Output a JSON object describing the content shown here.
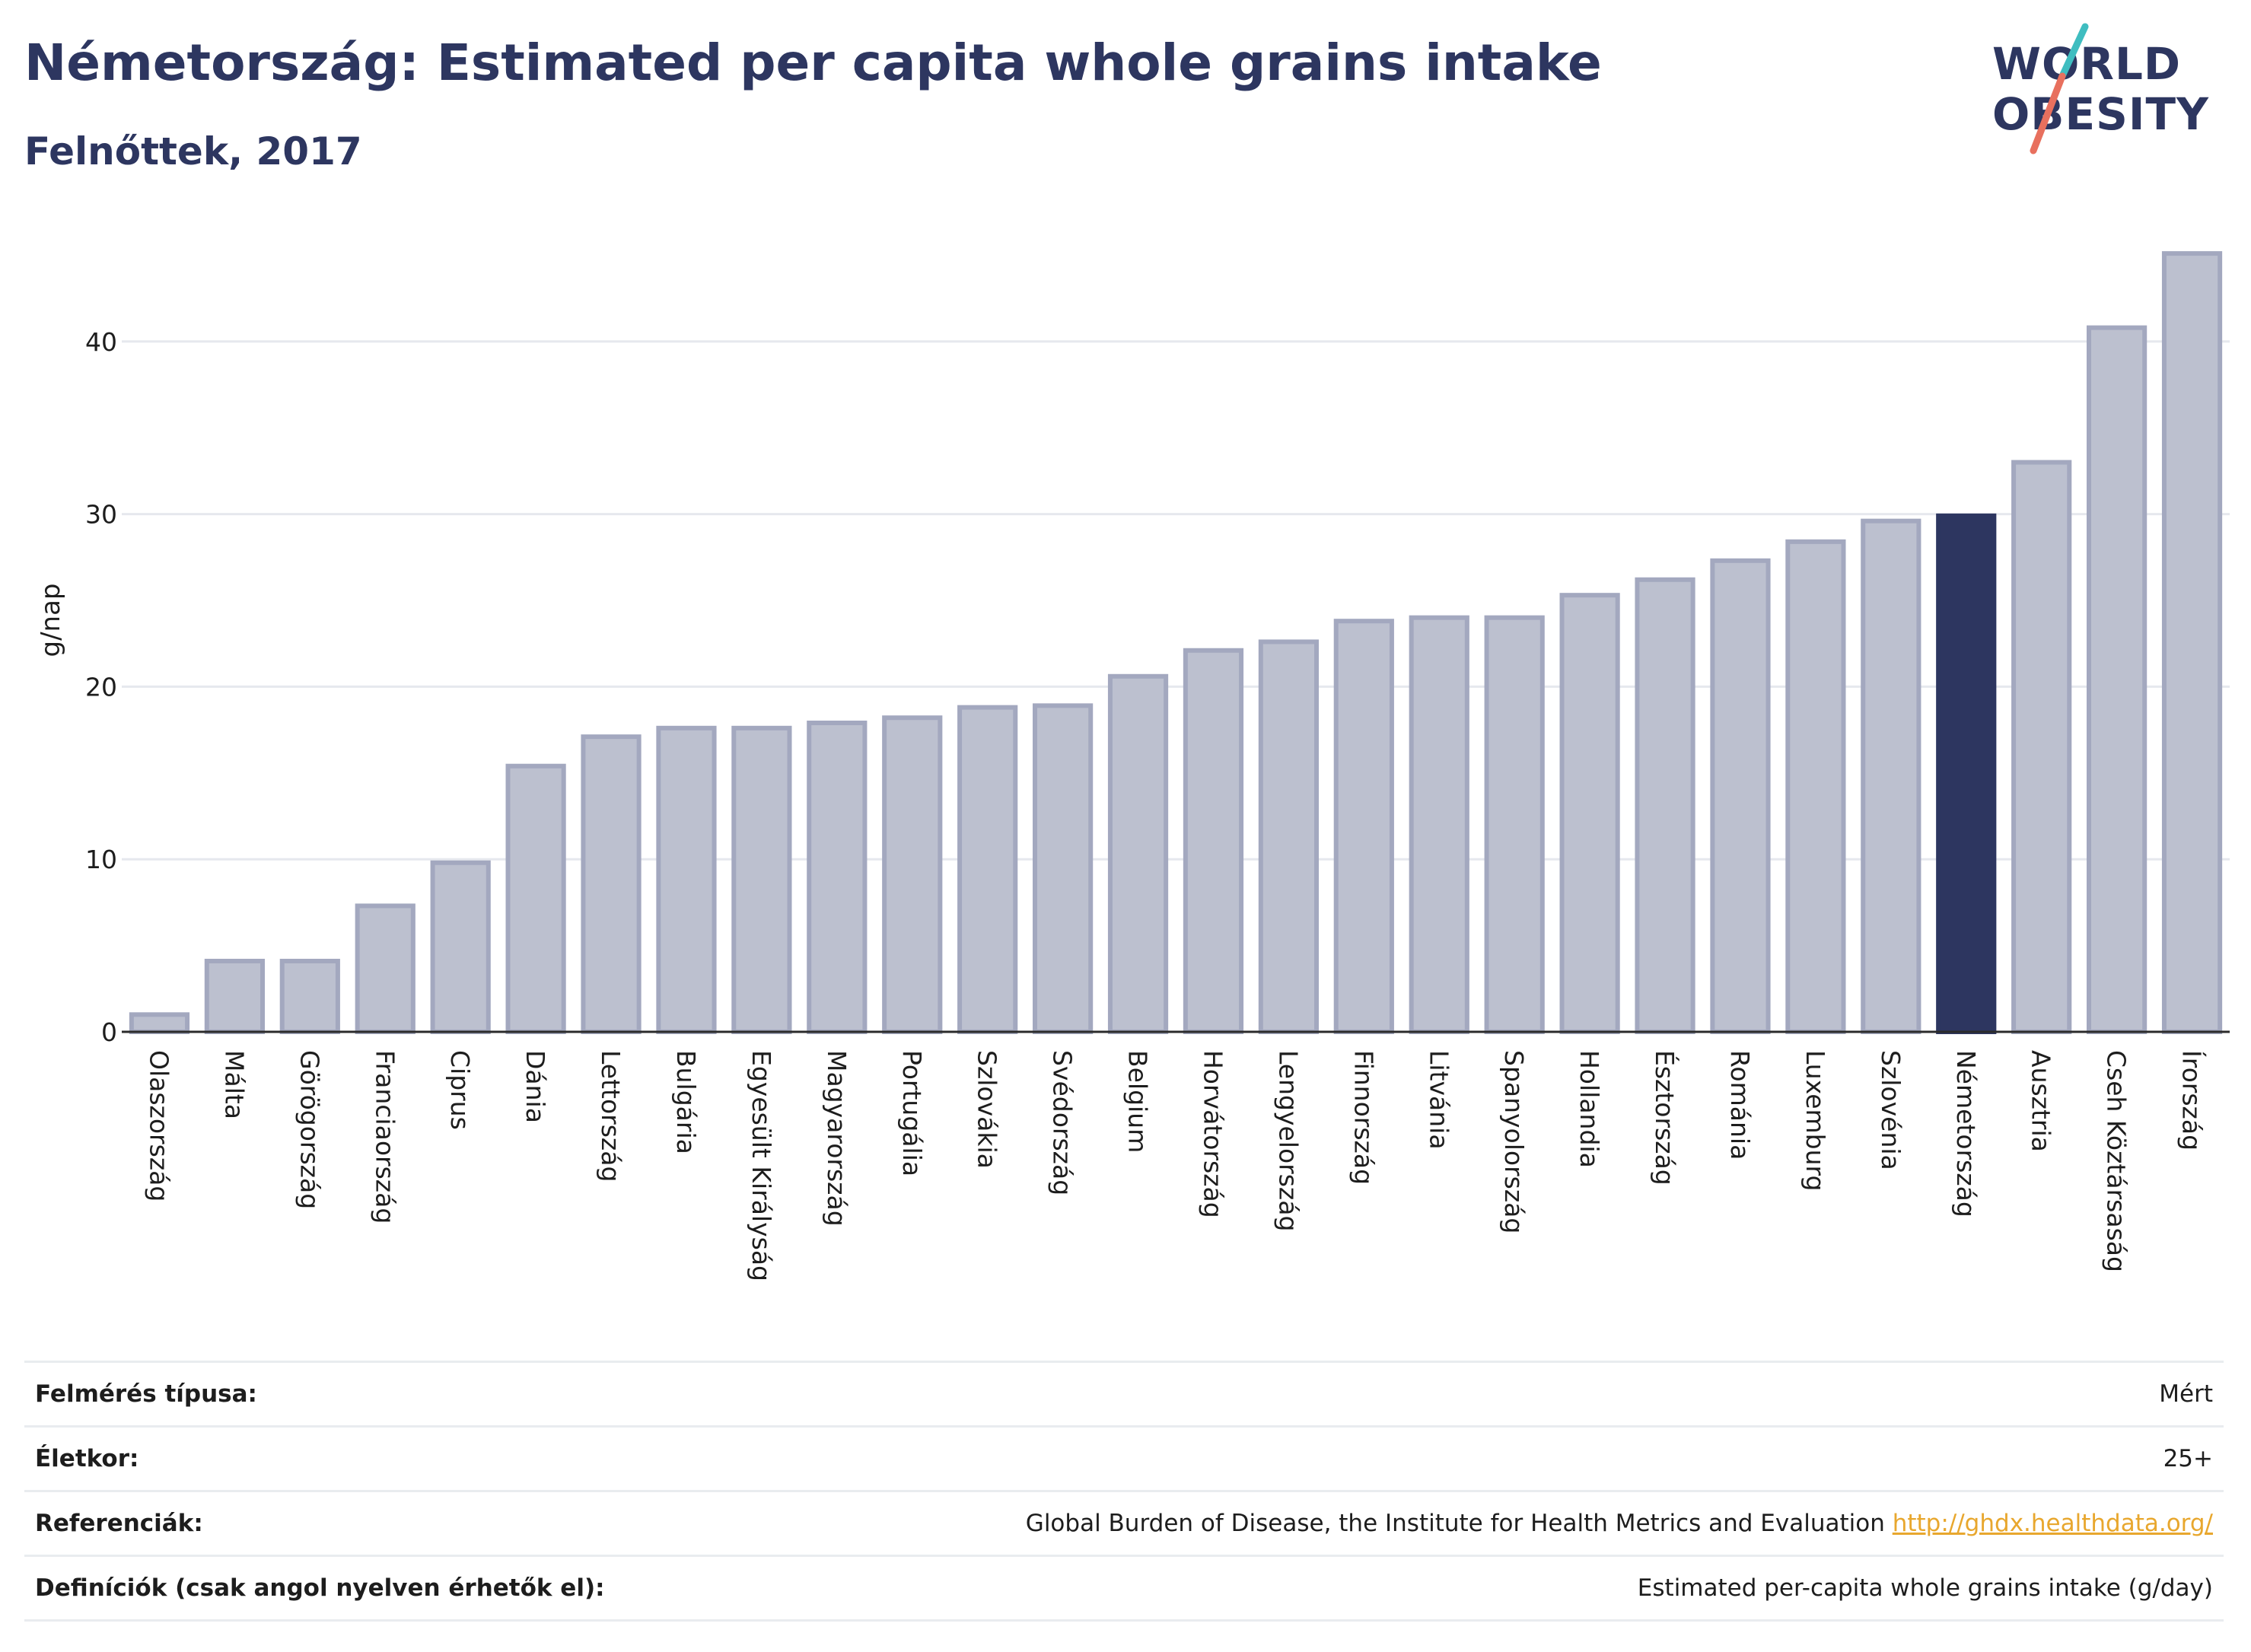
{
  "header": {
    "title": "Németország: Estimated per capita whole grains intake",
    "subtitle": "Felnőttek, 2017"
  },
  "logo": {
    "line1": "WORLD",
    "line2": "OBESITY"
  },
  "chart_data": {
    "type": "bar",
    "ylabel": "g/nap",
    "ylim": [
      0,
      47
    ],
    "yticks": [
      0,
      10,
      20,
      30,
      40
    ],
    "grid": true,
    "highlight": "Németország",
    "colors": {
      "bar": "#bcc0cf",
      "bar_border": "#a3a8bf",
      "highlight": "#2d3660"
    },
    "categories": [
      "Olaszország",
      "Málta",
      "Görögország",
      "Franciaország",
      "Ciprus",
      "Dánia",
      "Lettország",
      "Bulgária",
      "Egyesült Királyság",
      "Magyarország",
      "Portugália",
      "Szlovákia",
      "Svédország",
      "Belgium",
      "Horvátország",
      "Lengyelország",
      "Finnország",
      "Litvánia",
      "Spanyolország",
      "Hollandia",
      "Észtország",
      "Románia",
      "Luxemburg",
      "Szlovénia",
      "Németország",
      "Ausztria",
      "Cseh Köztársaság",
      "Írország"
    ],
    "values": [
      1.0,
      4.1,
      4.1,
      7.3,
      9.8,
      15.4,
      17.1,
      17.6,
      17.6,
      17.9,
      18.2,
      18.8,
      18.9,
      20.6,
      22.1,
      22.6,
      23.8,
      24.0,
      24.0,
      25.3,
      26.2,
      27.3,
      28.4,
      29.6,
      29.9,
      33.0,
      40.8,
      45.1
    ]
  },
  "info": [
    {
      "label": "Felmérés típusa:",
      "value": "Mért"
    },
    {
      "label": "Életkor:",
      "value": "25+"
    },
    {
      "label": "Referenciák:",
      "value": "Global Burden of Disease, the Institute for Health Metrics and Evaluation",
      "link": "http://ghdx.healthdata.org/"
    },
    {
      "label": "Definíciók (csak angol nyelven érhetők el):",
      "value": "Estimated per-capita whole grains intake (g/day)"
    }
  ]
}
